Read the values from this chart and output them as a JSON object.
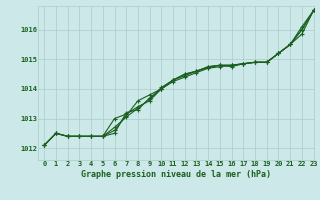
{
  "title": "Graphe pression niveau de la mer (hPa)",
  "background_color": "#cce8e8",
  "plot_bg_color": "#cce8e8",
  "grid_color": "#aacccc",
  "line_color": "#1a6020",
  "text_color": "#1a6020",
  "xlim": [
    -0.5,
    23
  ],
  "ylim": [
    1011.6,
    1016.8
  ],
  "yticks": [
    1012,
    1013,
    1014,
    1015,
    1016
  ],
  "xticks": [
    0,
    1,
    2,
    3,
    4,
    5,
    6,
    7,
    8,
    9,
    10,
    11,
    12,
    13,
    14,
    15,
    16,
    17,
    18,
    19,
    20,
    21,
    22,
    23
  ],
  "series": [
    [
      1012.1,
      1012.5,
      1012.4,
      1012.4,
      1012.4,
      1012.4,
      1012.6,
      1013.1,
      1013.6,
      1013.8,
      1014.0,
      1014.25,
      1014.4,
      1014.55,
      1014.7,
      1014.75,
      1014.8,
      1014.85,
      1014.9,
      1014.9,
      1015.2,
      1015.5,
      1016.1,
      1016.65
    ],
    [
      1012.1,
      1012.5,
      1012.4,
      1012.4,
      1012.4,
      1012.4,
      1013.0,
      1013.15,
      1013.4,
      1013.6,
      1014.0,
      1014.3,
      1014.45,
      1014.6,
      1014.75,
      1014.8,
      1014.8,
      1014.85,
      1014.9,
      1014.9,
      1015.2,
      1015.5,
      1016.0,
      1016.65
    ],
    [
      1012.1,
      1012.5,
      1012.4,
      1012.4,
      1012.4,
      1012.4,
      1012.7,
      1013.05,
      1013.35,
      1013.65,
      1014.05,
      1014.3,
      1014.5,
      1014.6,
      1014.75,
      1014.8,
      1014.8,
      1014.85,
      1014.9,
      1014.9,
      1015.2,
      1015.5,
      1015.85,
      1016.65
    ],
    [
      1012.1,
      1012.5,
      1012.4,
      1012.4,
      1012.4,
      1012.4,
      1012.5,
      1013.2,
      1013.3,
      1013.7,
      1014.0,
      1014.3,
      1014.5,
      1014.6,
      1014.72,
      1014.8,
      1014.75,
      1014.85,
      1014.9,
      1014.9,
      1015.2,
      1015.5,
      1016.0,
      1016.65
    ]
  ],
  "marker_series": [
    0,
    1,
    2,
    3
  ]
}
